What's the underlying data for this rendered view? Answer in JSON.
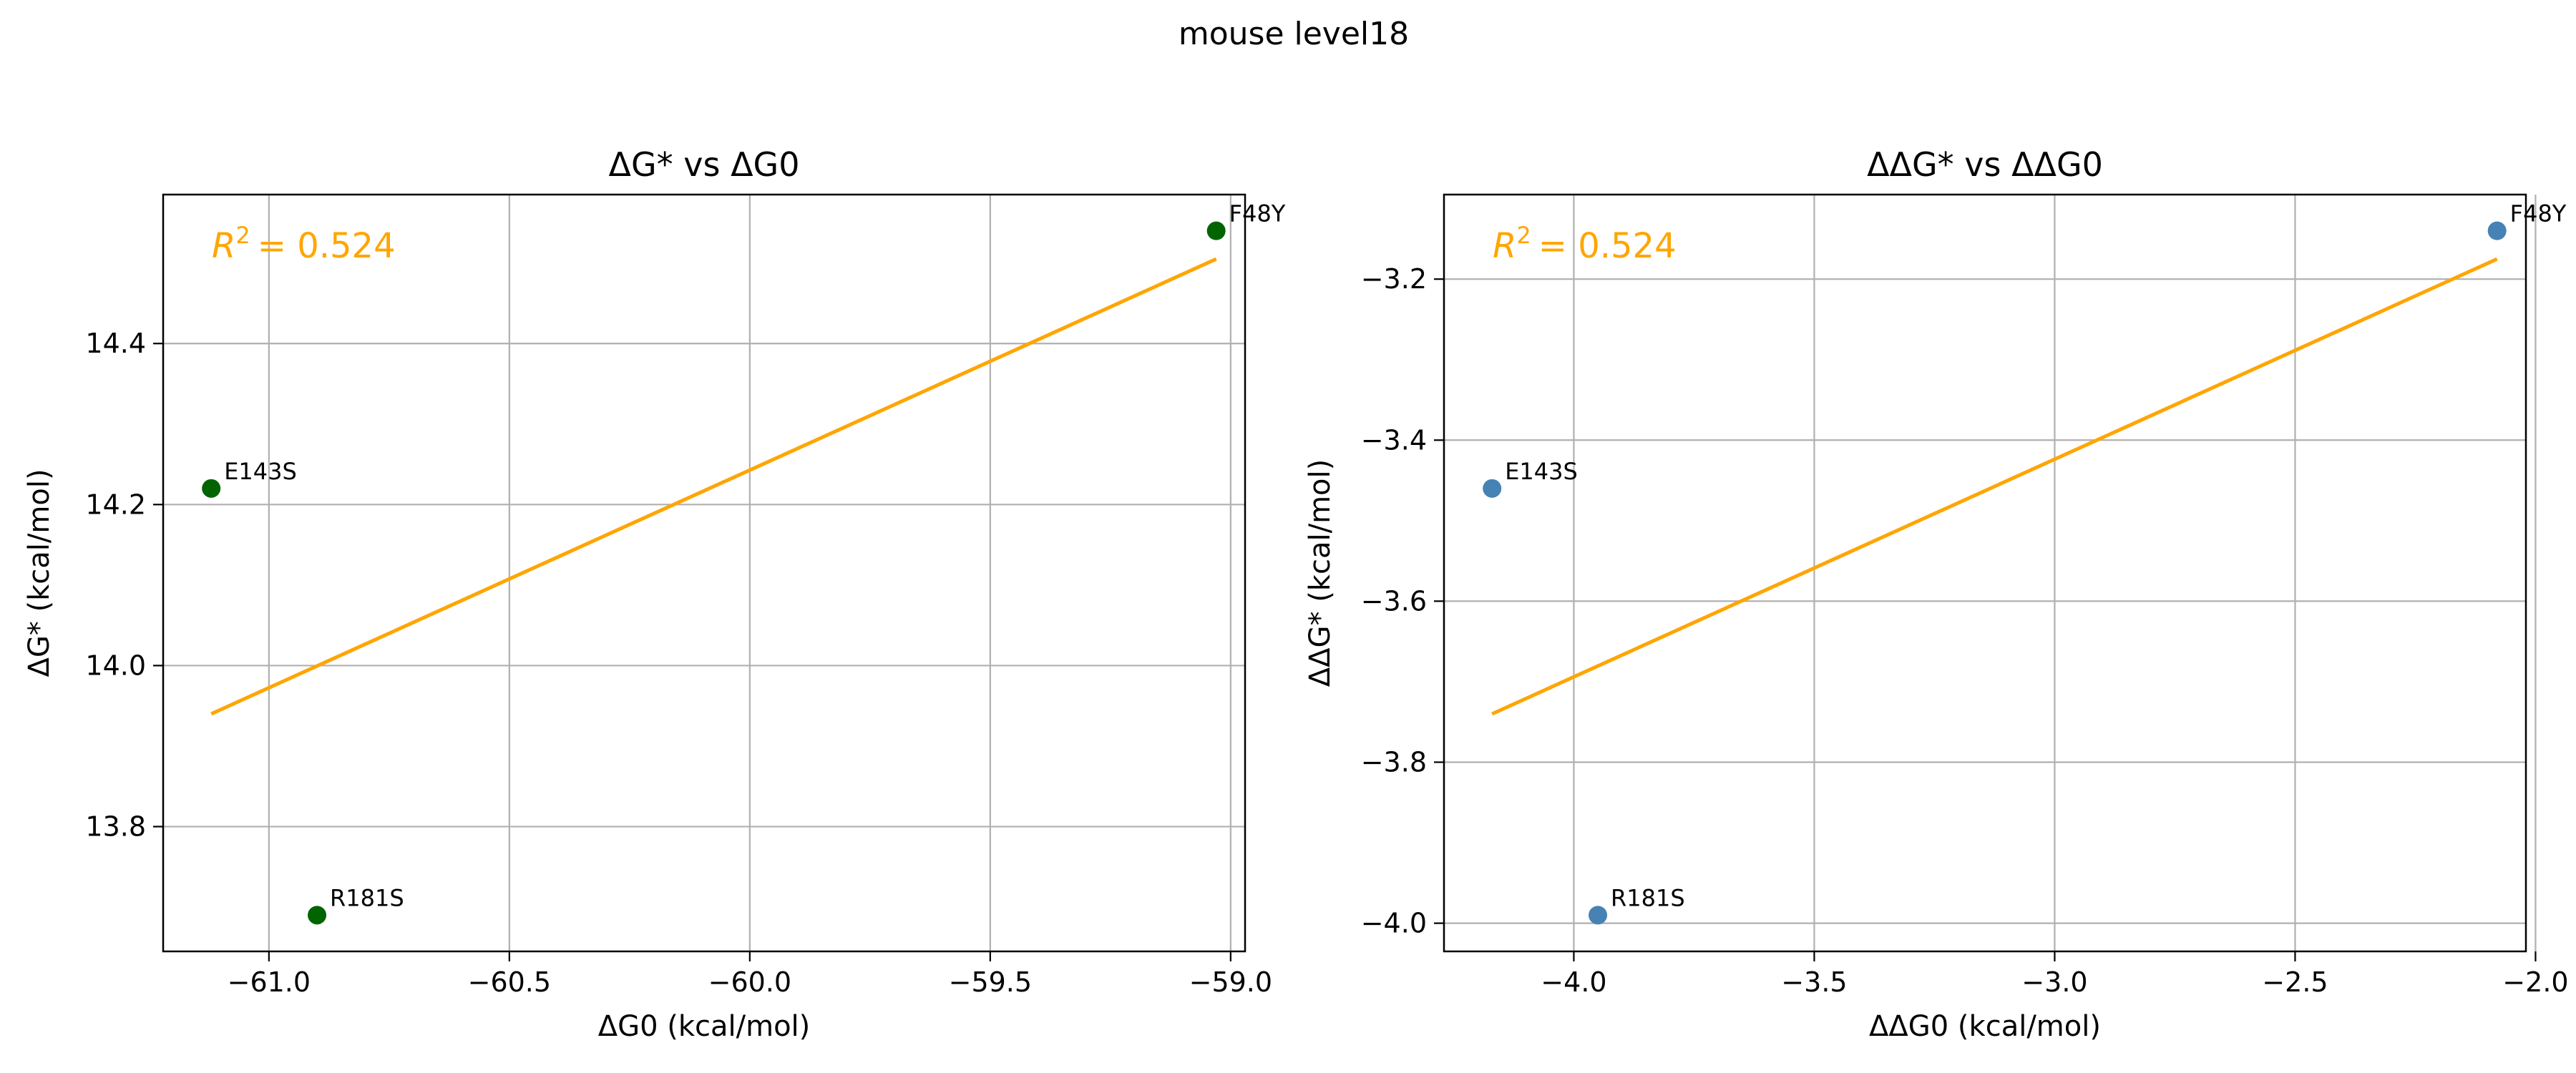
{
  "figure": {
    "suptitle": "mouse level18"
  },
  "chart_data": [
    {
      "type": "scatter",
      "title": "ΔG* vs ΔG0",
      "xlabel": "ΔG0 (kcal/mol)",
      "ylabel": "ΔG* (kcal/mol)",
      "xlim": [
        -61.22,
        -58.97
      ],
      "ylim": [
        13.645,
        14.585
      ],
      "xticks": [
        -61.0,
        -60.5,
        -60.0,
        -59.5,
        -59.0
      ],
      "yticks": [
        13.8,
        14.0,
        14.2,
        14.4
      ],
      "xtick_labels": [
        "−61.0",
        "−60.5",
        "−60.0",
        "−59.5",
        "−59.0"
      ],
      "ytick_labels": [
        "13.8",
        "14.0",
        "14.2",
        "14.4"
      ],
      "grid": true,
      "point_color": "#006400",
      "fit_color": "#FFA500",
      "points": [
        {
          "label": "E143S",
          "x": -61.12,
          "y": 14.22
        },
        {
          "label": "R181S",
          "x": -60.9,
          "y": 13.69
        },
        {
          "label": "F48Y",
          "x": -59.03,
          "y": 14.54
        }
      ],
      "fit_line": {
        "x": [
          -61.12,
          -59.03
        ],
        "y": [
          13.94,
          14.505
        ]
      },
      "r2_label": "= 0.524"
    },
    {
      "type": "scatter",
      "title": "ΔΔG* vs ΔΔG0",
      "xlabel": "ΔΔG0 (kcal/mol)",
      "ylabel": "ΔΔG* (kcal/mol)",
      "xlim": [
        -4.27,
        -2.02
      ],
      "ylim": [
        -4.035,
        -3.095
      ],
      "xticks": [
        -4.0,
        -3.5,
        -3.0,
        -2.5,
        -2.0
      ],
      "yticks": [
        -4.0,
        -3.8,
        -3.6,
        -3.4,
        -3.2
      ],
      "xtick_labels": [
        "−4.0",
        "−3.5",
        "−3.0",
        "−2.5",
        "−2.0"
      ],
      "ytick_labels": [
        "−4.0",
        "−3.8",
        "−3.6",
        "−3.4",
        "−3.2"
      ],
      "grid": true,
      "point_color": "#4682B4",
      "fit_color": "#FFA500",
      "points": [
        {
          "label": "E143S",
          "x": -4.17,
          "y": -3.46
        },
        {
          "label": "R181S",
          "x": -3.95,
          "y": -3.99
        },
        {
          "label": "F48Y",
          "x": -2.08,
          "y": -3.14
        }
      ],
      "fit_line": {
        "x": [
          -4.17,
          -2.08
        ],
        "y": [
          -3.74,
          -3.175
        ]
      },
      "r2_label": "= 0.524"
    }
  ]
}
